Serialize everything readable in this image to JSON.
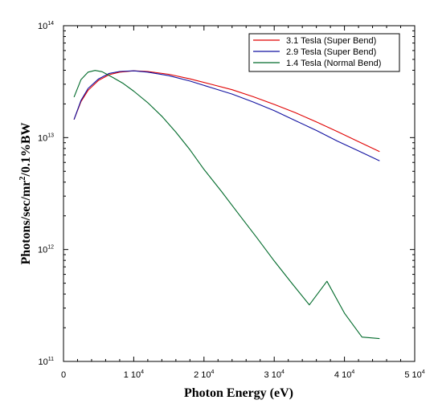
{
  "chart_data": {
    "type": "line",
    "xlabel": "Photon Energy (eV)",
    "ylabel": "Photons/sec/mr²/0.1%BW",
    "ylabel_parts": {
      "before": "Photons/sec/mr",
      "superscript": "2",
      "after": "/0.1%BW"
    },
    "x_scale": "linear",
    "y_scale": "log",
    "xlim": [
      0,
      50000
    ],
    "ylim": [
      100000000000,
      100000000000000
    ],
    "grid": false,
    "legend_position": "top-right",
    "x_ticks": [
      {
        "value": 0,
        "mantissa": "0",
        "exponent": ""
      },
      {
        "value": 10000,
        "mantissa": "1 10",
        "exponent": "4"
      },
      {
        "value": 20000,
        "mantissa": "2 10",
        "exponent": "4"
      },
      {
        "value": 30000,
        "mantissa": "3 10",
        "exponent": "4"
      },
      {
        "value": 40000,
        "mantissa": "4 10",
        "exponent": "4"
      },
      {
        "value": 50000,
        "mantissa": "5 10",
        "exponent": "4"
      }
    ],
    "y_ticks": [
      {
        "value": 100000000000,
        "mantissa": "10",
        "exponent": "11"
      },
      {
        "value": 1000000000000,
        "mantissa": "10",
        "exponent": "12"
      },
      {
        "value": 10000000000000,
        "mantissa": "10",
        "exponent": "13"
      },
      {
        "value": 100000000000000,
        "mantissa": "10",
        "exponent": "14"
      }
    ],
    "series": [
      {
        "name": "3.1 Tesla (Super Bend)",
        "color": "#e00000",
        "x": [
          1500,
          2500,
          3500,
          5000,
          6500,
          8000,
          10000,
          12000,
          15000,
          18000,
          21000,
          24000,
          27000,
          30000,
          33000,
          36000,
          39000,
          42000,
          45000
        ],
        "y": [
          14500000000000,
          21000000000000,
          26500000000000,
          32500000000000,
          36500000000000,
          38500000000000,
          39500000000000,
          39000000000000,
          36800000000000,
          33500000000000,
          30000000000000,
          26800000000000,
          23200000000000,
          19800000000000,
          16700000000000,
          13800000000000,
          11300000000000,
          9200000000000,
          7500000000000
        ]
      },
      {
        "name": "2.9 Tesla (Super Bend)",
        "color": "#1010a0",
        "x": [
          1500,
          2500,
          3500,
          5000,
          6500,
          8000,
          10000,
          12000,
          15000,
          18000,
          21000,
          24000,
          27000,
          30000,
          33000,
          36000,
          39000,
          42000,
          45000
        ],
        "y": [
          14500000000000,
          21500000000000,
          27500000000000,
          33500000000000,
          37500000000000,
          39000000000000,
          39500000000000,
          38500000000000,
          35800000000000,
          32000000000000,
          28000000000000,
          24500000000000,
          20800000000000,
          17400000000000,
          14200000000000,
          11600000000000,
          9300000000000,
          7600000000000,
          6200000000000
        ]
      },
      {
        "name": "1.4 Tesla (Normal Bend)",
        "color": "#006a2a",
        "x": [
          1500,
          2500,
          3500,
          4500,
          5500,
          7000,
          8500,
          10000,
          12000,
          14000,
          16000,
          18000,
          20000,
          22500,
          25000,
          27500,
          30000,
          32500,
          35000,
          37500,
          40000,
          42500,
          45000
        ],
        "y": [
          23000000000000,
          33000000000000,
          38500000000000,
          39800000000000,
          38800000000000,
          34500000000000,
          30500000000000,
          26000000000000,
          20500000000000,
          15500000000000,
          11200000000000,
          7800000000000,
          5200000000000,
          3300000000000,
          2050000000000,
          1280000000000,
          790000000000,
          500000000000,
          320000000000,
          520000000000,
          270000000000,
          165000000000,
          160000000000
        ]
      }
    ]
  }
}
